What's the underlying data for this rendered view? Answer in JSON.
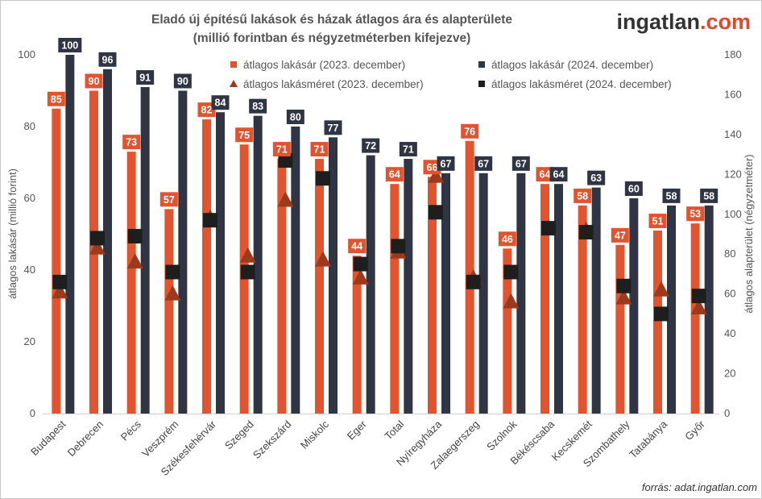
{
  "brand": {
    "name_part1": "ingatlan",
    "name_part2": ".com",
    "color1": "#333333",
    "color2": "#e0482a"
  },
  "source": "forrás: adat.ingatlan.com",
  "chart_data": {
    "type": "bar",
    "title": "Eladó új építésű lakások és házak átlagos ára és alapterülete",
    "subtitle": "(millió forintban és négyzetméterben kifejezve)",
    "ylabel": "átlagos lakásár (millió forint)",
    "y2label": "átlagos alapterület (négyzetméter)",
    "ylim": [
      0,
      100
    ],
    "y2lim": [
      0,
      180
    ],
    "yticks": [
      "0",
      "20",
      "40",
      "60",
      "80",
      "100"
    ],
    "y2ticks": [
      "0",
      "20",
      "40",
      "60",
      "80",
      "100",
      "120",
      "140",
      "160",
      "180"
    ],
    "categories": [
      "Budapest",
      "Debrecen",
      "Pécs",
      "Veszprém",
      "Székesfehérvár",
      "Szeged",
      "Szekszárd",
      "Miskolc",
      "Eger",
      "Total",
      "Nyíregyháza",
      "Zalaegerszeg",
      "Szolnok",
      "Békéscsaba",
      "Kecskemét",
      "Szombathely",
      "Tatabánya",
      "Győr"
    ],
    "series": [
      {
        "name": "átlagos lakásár (2023. december)",
        "kind": "bar",
        "axis": "left",
        "color": "#e0552f",
        "values": [
          85,
          90,
          73,
          57,
          82,
          75,
          71,
          71,
          44,
          64,
          66,
          76,
          46,
          64,
          58,
          47,
          51,
          53
        ],
        "labels": [
          "85",
          "90",
          "73",
          "57",
          "82",
          "75",
          "71",
          "71",
          "44",
          "64",
          "66",
          "76",
          "46",
          "64",
          "58",
          "47",
          "51",
          "53"
        ]
      },
      {
        "name": "átlagos lakásár (2024. december)",
        "kind": "bar",
        "axis": "left",
        "color": "#2f3542",
        "values": [
          100,
          96,
          91,
          90,
          84,
          83,
          80,
          77,
          72,
          71,
          67,
          67,
          67,
          64,
          63,
          60,
          58,
          58
        ],
        "labels": [
          "100",
          "96",
          "91",
          "90",
          "84",
          "83",
          "80",
          "77",
          "72",
          "71",
          "67",
          "67",
          "67",
          "64",
          "63",
          "60",
          "58",
          "58"
        ]
      },
      {
        "name": "átlagos lakásméret (2023. december)",
        "kind": "triangle",
        "axis": "right",
        "color": "#9b3a1c",
        "values": [
          61,
          83,
          76,
          60,
          98,
          79,
          107,
          77,
          68,
          81,
          119,
          68,
          56,
          93,
          92,
          58,
          62,
          53
        ]
      },
      {
        "name": "átlagos lakásméret (2024. december)",
        "kind": "square",
        "axis": "right",
        "color": "#1e1e1e",
        "values": [
          66,
          88,
          89,
          71,
          97,
          71,
          127,
          118,
          75,
          84,
          101,
          66,
          71,
          93,
          91,
          64,
          50,
          59
        ]
      }
    ],
    "legend_position": "top, inside plot",
    "grid": false
  }
}
